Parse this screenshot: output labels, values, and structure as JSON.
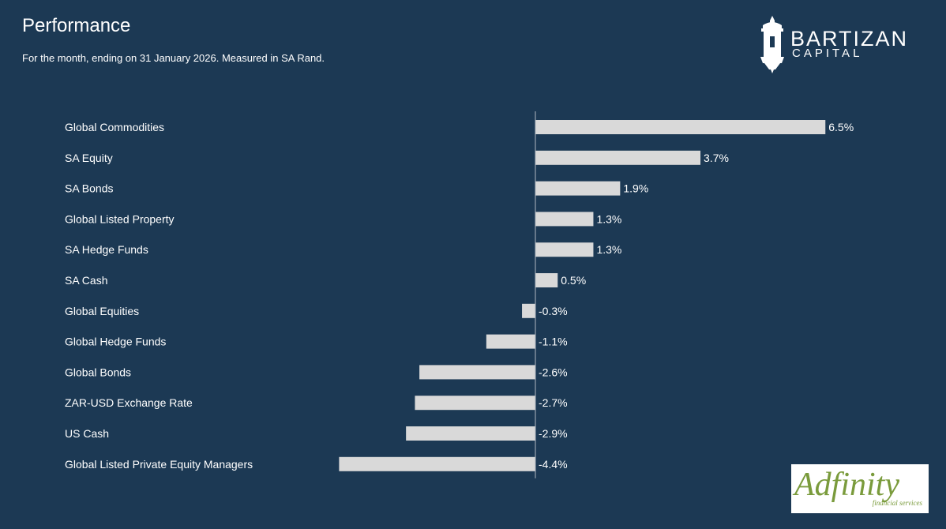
{
  "header": {
    "title": "Performance",
    "subtitle": "For the month, ending on 31 January 2026. Measured in SA Rand."
  },
  "logos": {
    "top": {
      "name": "BARTIZAN",
      "sub": "CAPITAL",
      "icon": "tower-icon"
    },
    "bottom": {
      "name": "Adfinity",
      "sub": "financial services"
    }
  },
  "colors": {
    "background": "#1c3954",
    "bar": "#d9d9d9",
    "text": "#ffffff",
    "adfinity_green": "#7a9b3c"
  },
  "chart_data": {
    "type": "bar",
    "orientation": "horizontal",
    "categories": [
      "Global Commodities",
      "SA Equity",
      "SA Bonds",
      "Global Listed Property",
      "SA Hedge Funds",
      "SA Cash",
      "Global Equities",
      "Global Hedge Funds",
      "Global Bonds",
      "ZAR-USD Exchange Rate",
      "US Cash",
      "Global Listed Private Equity Managers"
    ],
    "values": [
      6.5,
      3.7,
      1.9,
      1.3,
      1.3,
      0.5,
      -0.3,
      -1.1,
      -2.6,
      -2.7,
      -2.9,
      -4.4
    ],
    "value_labels": [
      "6.5%",
      "3.7%",
      "1.9%",
      "1.3%",
      "1.3%",
      "0.5%",
      "-0.3%",
      "-1.1%",
      "-2.6%",
      "-2.7%",
      "-2.9%",
      "-4.4%"
    ],
    "xlim": [
      -5.4,
      6.6
    ],
    "grid": false,
    "legend": "none"
  }
}
